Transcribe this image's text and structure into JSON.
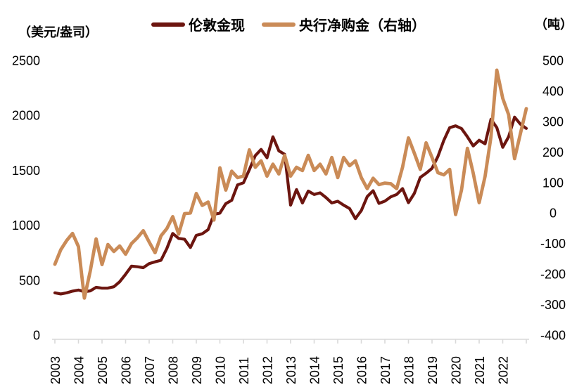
{
  "header": {
    "left_unit_label": "（美元/盎司）",
    "right_unit_label": "（吨）"
  },
  "legend": {
    "items": [
      {
        "label": "伦敦金现",
        "color": "#6C150F"
      },
      {
        "label": "央行净购金（右轴）",
        "color": "#CA8B57"
      }
    ]
  },
  "colors": {
    "gold_line": "#6C150F",
    "cb_line": "#CA8B57",
    "axis_line": "#D9D9D9",
    "text": "#000000",
    "background": "#FFFFFF"
  },
  "chart_data": {
    "type": "line",
    "title": "",
    "grid": false,
    "legend_position": "top-center",
    "x_axis": {
      "year_labels": [
        "2003",
        "2004",
        "2005",
        "2006",
        "2007",
        "2008",
        "2009",
        "2010",
        "2011",
        "2012",
        "2013",
        "2014",
        "2015",
        "2016",
        "2017",
        "2018",
        "2019",
        "2020",
        "2021",
        "2022"
      ],
      "points_per_year": 4,
      "frequency": "quarterly",
      "range_note": "2003Q1 through 2023Q1, 81 points per series"
    },
    "left_axis": {
      "unit_label": "（美元/盎司）",
      "min": 0,
      "max": 2500,
      "ticks": [
        0,
        500,
        1000,
        1500,
        2000,
        2500
      ]
    },
    "right_axis": {
      "unit_label": "（吨）",
      "min": -400,
      "max": 500,
      "ticks": [
        -400,
        -300,
        -200,
        -100,
        0,
        100,
        200,
        300,
        400,
        500
      ]
    },
    "series": [
      {
        "name": "伦敦金现",
        "axis": "left",
        "color": "#6C150F",
        "stroke_width": 4.2,
        "values": [
          385,
          375,
          385,
          400,
          410,
          395,
          402,
          435,
          427,
          428,
          440,
          485,
          554,
          627,
          622,
          614,
          650,
          667,
          681,
          788,
          925,
          880,
          872,
          797,
          908,
          922,
          960,
          1100,
          1110,
          1196,
          1227,
          1367,
          1386,
          1506,
          1633,
          1690,
          1614,
          1805,
          1677,
          1645,
          1183,
          1324,
          1203,
          1311,
          1280,
          1295,
          1252,
          1203,
          1218,
          1183,
          1152,
          1060,
          1133,
          1260,
          1314,
          1199,
          1219,
          1258,
          1280,
          1333,
          1205,
          1290,
          1435,
          1473,
          1518,
          1626,
          1773,
          1888,
          1905,
          1880,
          1805,
          1722,
          1773,
          1741,
          1964,
          1888,
          1709,
          1805,
          1984,
          1920,
          1881
        ]
      },
      {
        "name": "央行净购金（右轴）",
        "axis": "right",
        "color": "#CA8B57",
        "stroke_width": 4.8,
        "values": [
          -168,
          -120,
          -90,
          -67,
          -110,
          -279,
          -190,
          -85,
          -169,
          -103,
          -126,
          -108,
          -135,
          -100,
          -81,
          -58,
          -95,
          -130,
          -75,
          -51,
          -12,
          -69,
          -2,
          0,
          64,
          25,
          36,
          -23,
          148,
          75,
          137,
          116,
          121,
          207,
          150,
          171,
          121,
          160,
          128,
          189,
          121,
          150,
          139,
          189,
          139,
          160,
          128,
          182,
          116,
          182,
          155,
          171,
          116,
          80,
          114,
          93,
          98,
          96,
          80,
          150,
          246,
          196,
          143,
          230,
          182,
          132,
          125,
          143,
          -5,
          75,
          212,
          130,
          34,
          120,
          250,
          468,
          376,
          322,
          178,
          260,
          342
        ]
      }
    ]
  }
}
